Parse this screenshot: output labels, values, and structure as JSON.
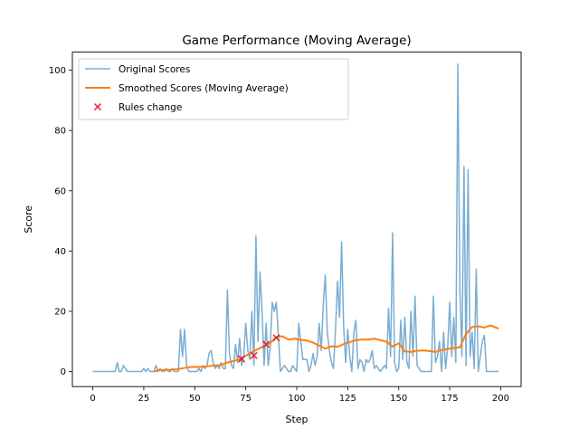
{
  "chart_data": {
    "type": "line",
    "title": "Game Performance (Moving Average)",
    "xlabel": "Step",
    "ylabel": "Score",
    "xlim": [
      -10,
      210
    ],
    "ylim": [
      -5,
      106
    ],
    "xticks": [
      0,
      25,
      50,
      75,
      100,
      125,
      150,
      175,
      200
    ],
    "yticks": [
      0,
      20,
      40,
      60,
      80,
      100
    ],
    "grid": false,
    "legend_position": "top-left",
    "series": [
      {
        "name": "Original Scores",
        "kind": "line",
        "color": "#7aadd2",
        "x": [
          0,
          1,
          2,
          3,
          4,
          5,
          6,
          7,
          8,
          9,
          10,
          11,
          12,
          13,
          14,
          15,
          16,
          17,
          18,
          19,
          20,
          21,
          22,
          23,
          24,
          25,
          26,
          27,
          28,
          29,
          30,
          31,
          32,
          33,
          34,
          35,
          36,
          37,
          38,
          39,
          40,
          41,
          42,
          43,
          44,
          45,
          46,
          47,
          48,
          49,
          50,
          51,
          52,
          53,
          54,
          55,
          56,
          57,
          58,
          59,
          60,
          61,
          62,
          63,
          64,
          65,
          66,
          67,
          68,
          69,
          70,
          71,
          72,
          73,
          74,
          75,
          76,
          77,
          78,
          79,
          80,
          81,
          82,
          83,
          84,
          85,
          86,
          87,
          88,
          89,
          90,
          91,
          92,
          93,
          94,
          95,
          96,
          97,
          98,
          99,
          100,
          101,
          102,
          103,
          104,
          105,
          106,
          107,
          108,
          109,
          110,
          111,
          112,
          113,
          114,
          115,
          116,
          117,
          118,
          119,
          120,
          121,
          122,
          123,
          124,
          125,
          126,
          127,
          128,
          129,
          130,
          131,
          132,
          133,
          134,
          135,
          136,
          137,
          138,
          139,
          140,
          141,
          142,
          143,
          144,
          145,
          146,
          147,
          148,
          149,
          150,
          151,
          152,
          153,
          154,
          155,
          156,
          157,
          158,
          159,
          160,
          161,
          162,
          163,
          164,
          165,
          166,
          167,
          168,
          169,
          170,
          171,
          172,
          173,
          174,
          175,
          176,
          177,
          178,
          179,
          180,
          181,
          182,
          183,
          184,
          185,
          186,
          187,
          188,
          189,
          190,
          191,
          192,
          193,
          194,
          195,
          196,
          197,
          198,
          199
        ],
        "values": [
          0,
          0,
          0,
          0,
          0,
          0,
          0,
          0,
          0,
          0,
          0,
          0,
          3,
          0,
          0,
          2,
          1,
          0,
          0,
          0,
          0,
          0,
          0,
          0,
          0,
          1,
          0,
          1,
          0,
          0,
          0,
          2,
          0,
          1,
          0,
          0,
          1,
          0,
          0,
          1,
          0,
          0,
          0,
          14,
          5,
          14,
          2,
          0,
          0,
          0,
          0,
          0,
          1,
          0,
          2,
          1,
          2,
          6,
          7,
          3,
          1,
          2,
          1,
          3,
          1,
          1,
          27,
          6,
          2,
          1,
          9,
          3,
          11,
          2,
          5,
          16,
          7,
          4,
          20,
          2,
          45,
          10,
          33,
          20,
          2,
          16,
          2,
          8,
          23,
          20,
          23,
          12,
          0,
          1,
          2,
          1,
          0,
          0,
          2,
          1,
          0,
          16,
          10,
          4,
          4,
          4,
          0,
          2,
          6,
          2,
          5,
          16,
          7,
          22,
          32,
          13,
          7,
          3,
          1,
          14,
          30,
          18,
          43,
          15,
          3,
          14,
          5,
          0,
          13,
          17,
          1,
          4,
          3,
          0,
          4,
          3,
          4,
          7,
          1,
          2,
          1,
          0,
          1,
          2,
          1,
          21,
          5,
          46,
          3,
          0,
          1,
          17,
          4,
          18,
          3,
          1,
          20,
          5,
          25,
          2,
          1,
          0,
          0,
          0,
          0,
          0,
          0,
          25,
          3,
          5,
          10,
          0,
          13,
          1,
          8,
          23,
          5,
          18,
          3,
          102,
          27,
          5,
          68,
          2,
          67,
          5,
          13,
          1,
          34,
          0,
          5,
          10,
          12,
          0,
          0,
          0,
          0,
          0,
          0,
          0
        ]
      },
      {
        "name": "Smoothed Scores (Moving Average)",
        "kind": "line",
        "color": "#ff7f0e",
        "x": [
          30,
          33,
          36,
          39,
          42,
          45,
          48,
          51,
          54,
          57,
          60,
          63,
          66,
          69,
          72,
          75,
          78,
          81,
          84,
          87,
          90,
          93,
          96,
          99,
          102,
          105,
          108,
          111,
          114,
          117,
          120,
          123,
          126,
          129,
          132,
          135,
          138,
          141,
          144,
          147,
          150,
          153,
          156,
          159,
          162,
          165,
          168,
          171,
          174,
          177,
          180,
          183,
          186,
          189,
          192,
          195,
          198,
          199
        ],
        "values": [
          0.0,
          0.5,
          0.5,
          0.6,
          0.8,
          1.2,
          1.5,
          1.5,
          1.6,
          1.8,
          2.0,
          2.2,
          3.0,
          3.5,
          4.1,
          5.2,
          6.4,
          7.5,
          8.4,
          9.4,
          11.5,
          11.7,
          10.6,
          10.9,
          10.5,
          10.3,
          9.6,
          8.6,
          7.6,
          8.4,
          8.2,
          9.1,
          9.8,
          10.4,
          10.6,
          10.6,
          10.9,
          10.4,
          9.9,
          8.3,
          9.4,
          6.7,
          6.5,
          6.9,
          7.0,
          6.8,
          6.5,
          7.1,
          7.5,
          7.8,
          8.0,
          12.5,
          14.8,
          15.0,
          14.6,
          15.3,
          14.5,
          14.2
        ]
      },
      {
        "name": "Rules change",
        "kind": "scatter",
        "marker": "x",
        "color": "#e5202a",
        "x": [
          73,
          79,
          85,
          90
        ],
        "values": [
          4.2,
          5.3,
          9.0,
          11.2
        ]
      }
    ]
  }
}
